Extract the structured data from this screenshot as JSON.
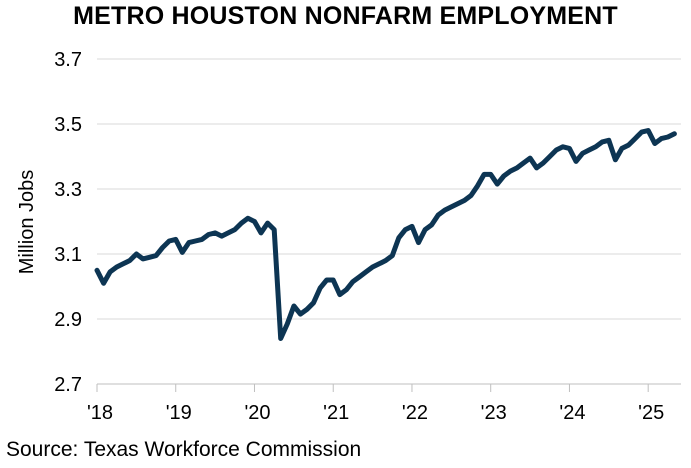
{
  "chart_data": {
    "type": "line",
    "title": "METRO HOUSTON NONFARM EMPLOYMENT",
    "ylabel": "Million Jobs",
    "xlabel": "",
    "source": "Source: Texas Workforce Commission",
    "ylim": [
      2.7,
      3.7
    ],
    "yticks": [
      "3.7",
      "3.5",
      "3.3",
      "3.1",
      "2.9",
      "2.7"
    ],
    "xticks": [
      "'18",
      "'19",
      "'20",
      "'21",
      "'22",
      "'23",
      "'24",
      "'25"
    ],
    "xlim": [
      "2018-01",
      "2025-06"
    ],
    "grid": "horizontal",
    "line_color": "#0d3553",
    "series": [
      {
        "x": [
          "2018-01",
          "2018-02",
          "2018-03",
          "2018-04",
          "2018-05",
          "2018-06",
          "2018-07",
          "2018-08",
          "2018-09",
          "2018-10",
          "2018-11",
          "2018-12",
          "2019-01",
          "2019-02",
          "2019-03",
          "2019-04",
          "2019-05",
          "2019-06",
          "2019-07",
          "2019-08",
          "2019-09",
          "2019-10",
          "2019-11",
          "2019-12",
          "2020-01",
          "2020-02",
          "2020-03",
          "2020-04",
          "2020-05",
          "2020-06",
          "2020-07",
          "2020-08",
          "2020-09",
          "2020-10",
          "2020-11",
          "2020-12",
          "2021-01",
          "2021-02",
          "2021-03",
          "2021-04",
          "2021-05",
          "2021-06",
          "2021-07",
          "2021-08",
          "2021-09",
          "2021-10",
          "2021-11",
          "2021-12",
          "2022-01",
          "2022-02",
          "2022-03",
          "2022-04",
          "2022-05",
          "2022-06",
          "2022-07",
          "2022-08",
          "2022-09",
          "2022-10",
          "2022-11",
          "2022-12",
          "2023-01",
          "2023-02",
          "2023-03",
          "2023-04",
          "2023-05",
          "2023-06",
          "2023-07",
          "2023-08",
          "2023-09",
          "2023-10",
          "2023-11",
          "2023-12",
          "2024-01",
          "2024-02",
          "2024-03",
          "2024-04",
          "2024-05",
          "2024-06",
          "2024-07",
          "2024-08",
          "2024-09",
          "2024-10",
          "2024-11",
          "2024-12",
          "2025-01",
          "2025-02",
          "2025-03",
          "2025-04",
          "2025-05"
        ],
        "values": [
          3.05,
          3.01,
          3.045,
          3.06,
          3.07,
          3.08,
          3.1,
          3.085,
          3.09,
          3.095,
          3.12,
          3.14,
          3.145,
          3.105,
          3.135,
          3.14,
          3.145,
          3.16,
          3.165,
          3.155,
          3.165,
          3.175,
          3.195,
          3.21,
          3.2,
          3.165,
          3.195,
          3.175,
          2.84,
          2.885,
          2.94,
          2.915,
          2.93,
          2.95,
          2.995,
          3.02,
          3.02,
          2.975,
          2.99,
          3.015,
          3.03,
          3.045,
          3.06,
          3.07,
          3.08,
          3.095,
          3.15,
          3.175,
          3.185,
          3.135,
          3.175,
          3.19,
          3.22,
          3.235,
          3.245,
          3.255,
          3.265,
          3.28,
          3.31,
          3.345,
          3.345,
          3.315,
          3.34,
          3.355,
          3.365,
          3.38,
          3.395,
          3.365,
          3.38,
          3.4,
          3.42,
          3.43,
          3.425,
          3.385,
          3.41,
          3.42,
          3.43,
          3.445,
          3.45,
          3.39,
          3.425,
          3.435,
          3.455,
          3.475,
          3.48,
          3.44,
          3.455,
          3.46,
          3.47
        ]
      }
    ]
  }
}
